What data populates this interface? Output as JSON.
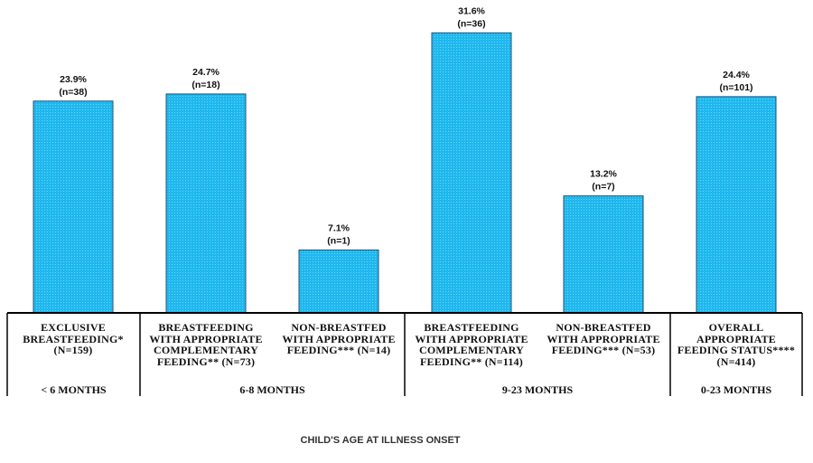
{
  "chart_data": {
    "type": "bar",
    "title": "",
    "xlabel": "CHILD'S AGE AT ILLNESS ONSET",
    "ylabel": "",
    "ylim": [
      0,
      35
    ],
    "grid": false,
    "bar_color": "#1fb8ee",
    "bar_border_color": "#1d4f73",
    "categories": [
      "EXCLUSIVE BREASTFEEDING* (N=159)",
      "BREASTFEEDING WITH APPROPRIATE COMPLEMENTARY FEEDING** (N=73)",
      "NON-BREASTFED WITH APPROPRIATE FEEDING*** (N=14)",
      "BREASTFEEDING WITH APPROPRIATE COMPLEMENTARY FEEDING** (N=114)",
      "NON-BREASTFED WITH APPROPRIATE FEEDING*** (N=53)",
      "OVERALL APPROPRIATE FEEDING STATUS**** (N=414)"
    ],
    "category_lines": [
      [
        "EXCLUSIVE",
        "BREASTFEEDING*",
        "(N=159)"
      ],
      [
        "BREASTFEEDING",
        "WITH APPROPRIATE",
        "COMPLEMENTARY",
        "FEEDING** (N=73)"
      ],
      [
        "NON-BREASTFED",
        "WITH APPROPRIATE",
        "FEEDING*** (N=14)"
      ],
      [
        "BREASTFEEDING",
        "WITH APPROPRIATE",
        "COMPLEMENTARY",
        "FEEDING**  (N=114)"
      ],
      [
        "NON-BREASTFED",
        "WITH APPROPRIATE",
        "FEEDING*** (N=53)"
      ],
      [
        "OVERALL",
        "APPROPRIATE",
        "FEEDING STATUS****",
        "(N=414)"
      ]
    ],
    "values": [
      23.9,
      24.7,
      7.1,
      31.6,
      13.2,
      24.4
    ],
    "value_labels": [
      "23.9%",
      "24.7%",
      "7.1%",
      "31.6%",
      "13.2%",
      "24.4%"
    ],
    "count_labels": [
      "(n=38)",
      "(n=18)",
      "(n=1)",
      "(n=36)",
      "(n=7)",
      "(n=101)"
    ],
    "groups": [
      {
        "label": "< 6 MONTHS",
        "categories": [
          0
        ]
      },
      {
        "label": "6-8 MONTHS",
        "categories": [
          1,
          2
        ]
      },
      {
        "label": "9-23 MONTHS",
        "categories": [
          3,
          4
        ]
      },
      {
        "label": "0-23 MONTHS",
        "categories": [
          5
        ]
      }
    ]
  }
}
